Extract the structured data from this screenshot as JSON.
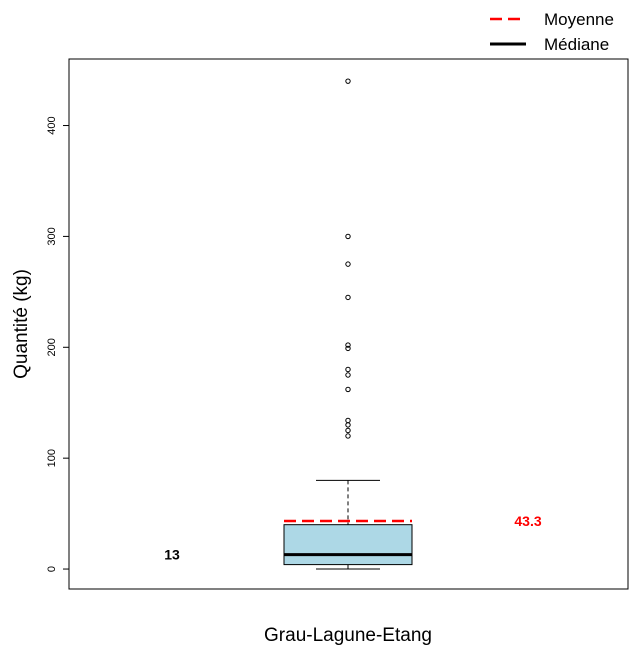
{
  "chart_data": {
    "type": "box",
    "title": "",
    "xlabel": "Grau-Lagune-Etang",
    "ylabel": "Quantité (kg)",
    "ylim": [
      -18,
      460
    ],
    "yticks": [
      0,
      100,
      200,
      300,
      400
    ],
    "category": "Grau-Lagune-Etang",
    "box": {
      "min": 0,
      "q1": 4,
      "median": 13,
      "q3": 40,
      "whisker_high": 80,
      "mean": 43.3
    },
    "outliers": [
      120,
      125,
      130,
      134,
      162,
      175,
      180,
      199,
      202,
      245,
      275,
      300,
      440
    ],
    "median_label": "13",
    "mean_label": "43.3",
    "legend": {
      "position": "top-right",
      "entries": [
        {
          "name": "Moyenne",
          "style": "dashed",
          "color": "#ff0000"
        },
        {
          "name": "Médiane",
          "style": "solid",
          "color": "#000000"
        }
      ]
    },
    "colors": {
      "box_fill": "#add8e6",
      "mean_line": "#ff0000",
      "median_line": "#000000",
      "mean_label": "#ff0000"
    }
  }
}
